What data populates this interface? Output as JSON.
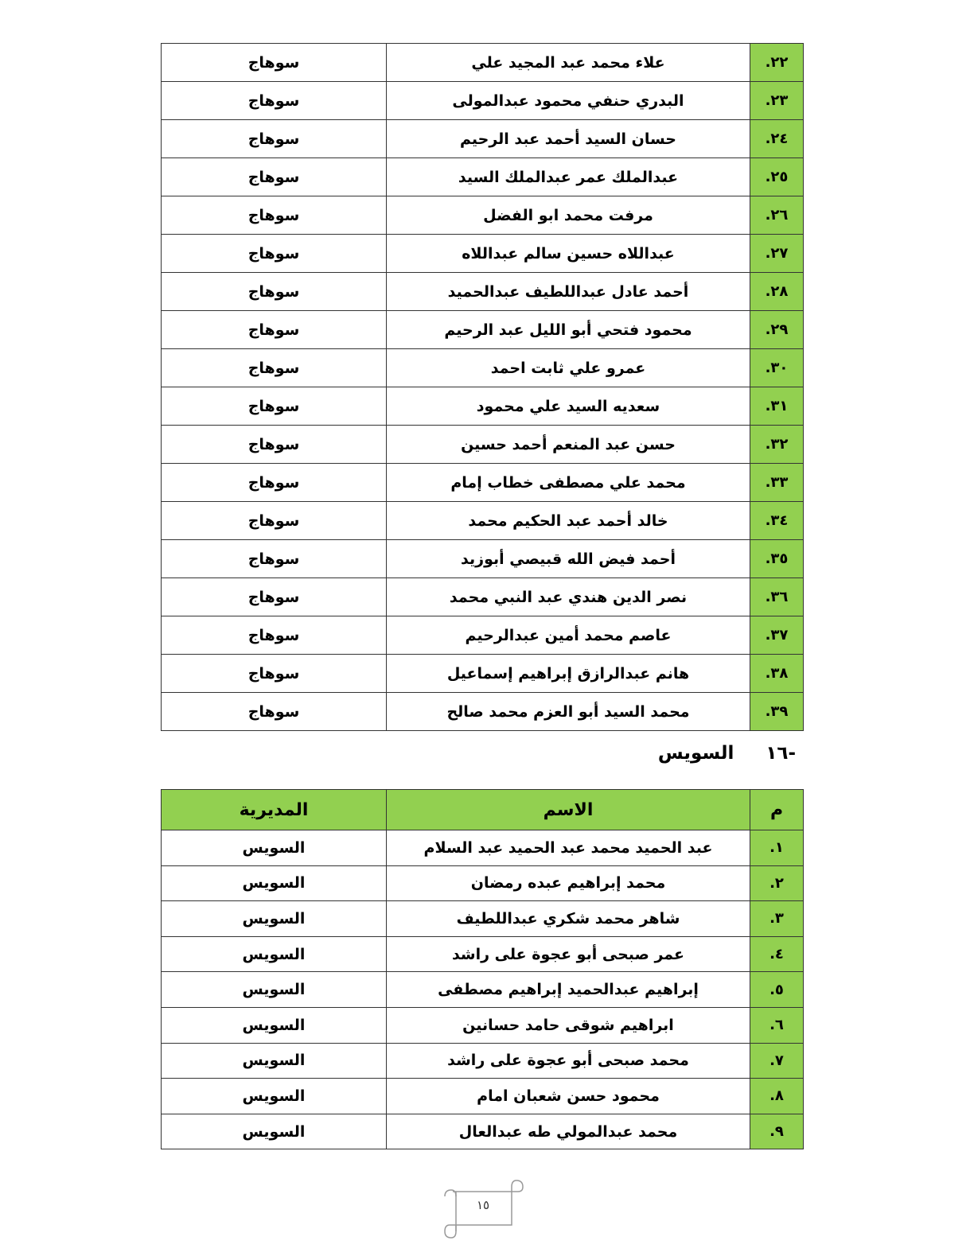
{
  "table1": {
    "rows": [
      {
        "num": "٢٢.",
        "name": "علاء محمد عبد المجيد علي",
        "city": "سوهاج"
      },
      {
        "num": "٢٣.",
        "name": "البدري حنفي محمود عبدالمولى",
        "city": "سوهاج"
      },
      {
        "num": "٢٤.",
        "name": "حسان السيد أحمد عبد الرحيم",
        "city": "سوهاج"
      },
      {
        "num": "٢٥.",
        "name": "عبدالملك عمر عبدالملك السيد",
        "city": "سوهاج"
      },
      {
        "num": "٢٦.",
        "name": "مرفت محمد ابو الفضل",
        "city": "سوهاج"
      },
      {
        "num": "٢٧.",
        "name": "عبداللاه حسين سالم عبداللاه",
        "city": "سوهاج"
      },
      {
        "num": "٢٨.",
        "name": "أحمد عادل عبداللطيف عبدالحميد",
        "city": "سوهاج"
      },
      {
        "num": "٢٩.",
        "name": "محمود فتحي أبو الليل عبد الرحيم",
        "city": "سوهاج"
      },
      {
        "num": "٣٠.",
        "name": "عمرو علي ثابت احمد",
        "city": "سوهاج"
      },
      {
        "num": "٣١.",
        "name": "سعديه السيد علي محمود",
        "city": "سوهاج"
      },
      {
        "num": "٣٢.",
        "name": "حسن عبد المنعم أحمد حسين",
        "city": "سوهاج"
      },
      {
        "num": "٣٣.",
        "name": "محمد علي مصطفى خطاب إمام",
        "city": "سوهاج"
      },
      {
        "num": "٣٤.",
        "name": "خالد أحمد عبد الحكيم محمد",
        "city": "سوهاج"
      },
      {
        "num": "٣٥.",
        "name": "أحمد فيض الله قبيصي أبوزيد",
        "city": "سوهاج"
      },
      {
        "num": "٣٦.",
        "name": "نصر الدين هندي عبد النبي محمد",
        "city": "سوهاج"
      },
      {
        "num": "٣٧.",
        "name": "عاصم محمد أمين عبدالرحيم",
        "city": "سوهاج"
      },
      {
        "num": "٣٨.",
        "name": "هانم عبدالرازق إبراهيم إسماعيل",
        "city": "سوهاج"
      },
      {
        "num": "٣٩.",
        "name": "محمد السيد أبو العزم محمد صالح",
        "city": "سوهاج"
      }
    ]
  },
  "section": {
    "number": "-١٦",
    "title": "السويس"
  },
  "table2": {
    "headers": {
      "num": "م",
      "name": "الاسم",
      "city": "المديرية"
    },
    "rows": [
      {
        "num": "١.",
        "name": "عبد الحميد محمد عبد الحميد عبد السلام",
        "city": "السويس"
      },
      {
        "num": "٢.",
        "name": "محمد إبراهيم عبده رمضان",
        "city": "السويس"
      },
      {
        "num": "٣.",
        "name": "شاهر محمد شكري عبداللطيف",
        "city": "السويس"
      },
      {
        "num": "٤.",
        "name": "عمر صبحى أبو عجوة على راشد",
        "city": "السويس"
      },
      {
        "num": "٥.",
        "name": "إبراهيم عبدالحميد إبراهيم مصطفى",
        "city": "السويس"
      },
      {
        "num": "٦.",
        "name": "ابراهيم شوقى حامد حسانين",
        "city": "السويس"
      },
      {
        "num": "٧.",
        "name": "محمد صبحى أبو عجوة على راشد",
        "city": "السويس"
      },
      {
        "num": "٨.",
        "name": "محمود حسن شعبان امام",
        "city": "السويس"
      },
      {
        "num": "٩.",
        "name": "محمد عبدالمولي طه عبدالعال",
        "city": "السويس"
      }
    ]
  },
  "footer": {
    "page_number": "١٥",
    "icon": "scroll-icon"
  },
  "colors": {
    "header_green": "#92D050"
  }
}
